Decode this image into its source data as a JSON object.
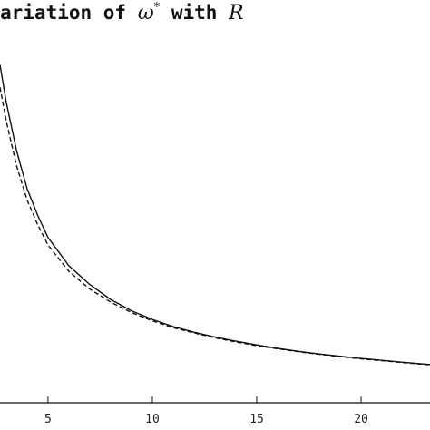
{
  "chart_data": {
    "type": "line",
    "title": {
      "text": "ariation of ",
      "symbol": "ω",
      "superscript": "*",
      "connector": " with ",
      "variable": "R"
    },
    "xlabel": "",
    "ylabel": "",
    "xlim": [
      2.7,
      23.3
    ],
    "ylim": [
      0,
      1.0
    ],
    "x_ticks": [
      5,
      10,
      15,
      20
    ],
    "x_tick_labels": [
      "5",
      "10",
      "15",
      "20"
    ],
    "grid": false,
    "series": [
      {
        "style": "solid",
        "color": "#111111",
        "x": [
          2.7,
          3.0,
          3.5,
          4.0,
          4.5,
          5.0,
          6.0,
          7.0,
          8.0,
          9.0,
          10.0,
          11.0,
          12.0,
          13.0,
          14.0,
          15.0,
          16.0,
          17.0,
          18.0,
          19.0,
          20.0,
          21.0,
          22.0,
          23.3
        ],
        "y": [
          0.9,
          0.8,
          0.67,
          0.57,
          0.5,
          0.44,
          0.365,
          0.315,
          0.275,
          0.245,
          0.222,
          0.203,
          0.188,
          0.175,
          0.164,
          0.154,
          0.145,
          0.137,
          0.13,
          0.124,
          0.118,
          0.113,
          0.108,
          0.102
        ]
      },
      {
        "style": "dashed",
        "color": "#111111",
        "x": [
          2.7,
          3.0,
          3.5,
          4.0,
          4.5,
          5.0,
          6.0,
          7.0,
          8.0,
          9.0,
          10.0,
          11.0,
          12.0,
          13.0,
          14.0,
          15.0,
          16.0,
          17.0,
          18.0,
          19.0,
          20.0,
          21.0,
          22.0,
          23.3
        ],
        "y": [
          0.84,
          0.75,
          0.63,
          0.54,
          0.475,
          0.42,
          0.35,
          0.303,
          0.268,
          0.24,
          0.218,
          0.2,
          0.186,
          0.173,
          0.162,
          0.152,
          0.144,
          0.136,
          0.129,
          0.123,
          0.117,
          0.112,
          0.107,
          0.101
        ]
      }
    ]
  }
}
